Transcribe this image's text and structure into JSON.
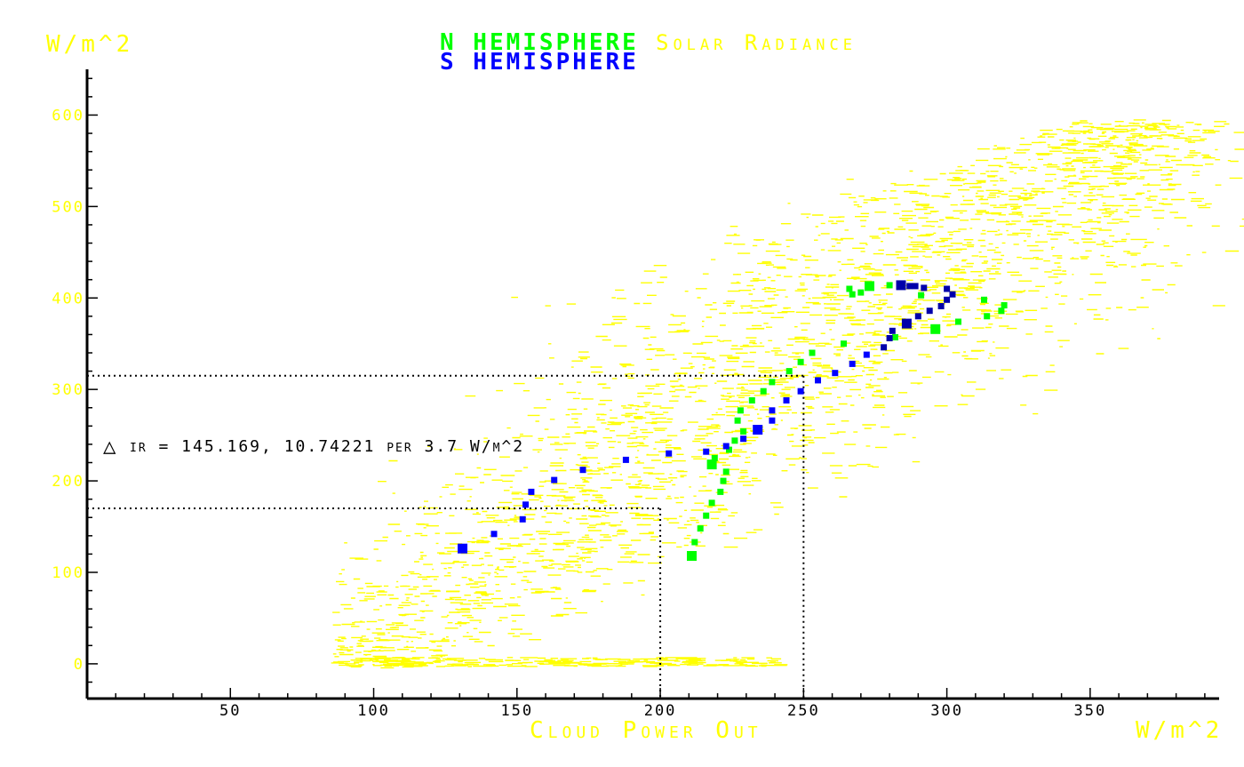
{
  "colors": {
    "background": "#ffffff",
    "axis": "#000000",
    "yellow": "#ffff00",
    "green": "#00ff00",
    "blue": "#0000ff",
    "blue_dark": "#0000aa"
  },
  "header": {
    "series_n": "N HEMISPHERE",
    "series_s": "S HEMISPHERE",
    "cloud_label": "Solar Radiance"
  },
  "y_unit": "W/m^2",
  "x_unit": "W/m^2",
  "annotation": {
    "symbol": "△",
    "text": "ir = 145.169, 10.74221 per 3.7 W/m^2"
  },
  "chart_data": {
    "type": "scatter",
    "xlabel": "Cloud Power Out",
    "ylabel": "W/m^2",
    "xlim": [
      0,
      395
    ],
    "ylim": [
      -38,
      650
    ],
    "x_ticks": [
      50,
      100,
      150,
      200,
      250,
      300,
      350
    ],
    "y_ticks": [
      0,
      100,
      200,
      300,
      400,
      500,
      600
    ],
    "grid": false,
    "reference_lines": [
      {
        "x": 200,
        "y": 170
      },
      {
        "x": 250,
        "y": 315
      }
    ],
    "series": [
      {
        "name": "N HEMISPHERE",
        "color": "#00ff00",
        "points": [
          [
            211,
            118
          ],
          [
            212,
            133
          ],
          [
            214,
            148
          ],
          [
            216,
            162
          ],
          [
            218,
            176
          ],
          [
            221,
            188
          ],
          [
            222,
            200
          ],
          [
            223,
            210
          ],
          [
            224,
            234
          ],
          [
            218,
            218
          ],
          [
            219,
            225
          ],
          [
            226,
            244
          ],
          [
            227,
            266
          ],
          [
            228,
            277
          ],
          [
            229,
            254
          ],
          [
            232,
            288
          ],
          [
            236,
            298
          ],
          [
            239,
            308
          ],
          [
            245,
            320
          ],
          [
            249,
            330
          ],
          [
            253,
            340
          ],
          [
            264,
            350
          ],
          [
            267,
            404
          ],
          [
            266,
            410
          ],
          [
            270,
            406
          ],
          [
            273,
            413
          ],
          [
            280,
            414
          ],
          [
            284,
            415
          ],
          [
            291,
            403
          ],
          [
            296,
            366
          ],
          [
            304,
            374
          ],
          [
            313,
            398
          ],
          [
            314,
            380
          ],
          [
            319,
            386
          ],
          [
            320,
            392
          ],
          [
            282,
            357
          ]
        ]
      },
      {
        "name": "S HEMISPHERE",
        "color": "#0000ff",
        "points": [
          [
            131,
            126
          ],
          [
            142,
            142
          ],
          [
            152,
            158
          ],
          [
            153,
            174
          ],
          [
            155,
            188
          ],
          [
            163,
            201
          ],
          [
            173,
            212
          ],
          [
            188,
            223
          ],
          [
            203,
            230
          ],
          [
            216,
            232
          ],
          [
            223,
            238
          ],
          [
            229,
            246
          ],
          [
            234,
            256
          ],
          [
            239,
            266
          ],
          [
            239,
            277
          ],
          [
            244,
            288
          ],
          [
            249,
            298
          ],
          [
            255,
            310
          ],
          [
            261,
            318
          ],
          [
            267,
            328
          ],
          [
            272,
            338
          ],
          [
            278,
            346
          ],
          [
            280,
            356
          ],
          [
            281,
            364
          ],
          [
            286,
            372
          ],
          [
            290,
            380
          ],
          [
            294,
            386
          ],
          [
            298,
            391
          ],
          [
            300,
            398
          ],
          [
            302,
            404
          ],
          [
            300,
            410
          ],
          [
            292,
            411
          ],
          [
            287,
            413
          ],
          [
            284,
            414
          ],
          [
            289,
            413
          ]
        ]
      }
    ]
  }
}
